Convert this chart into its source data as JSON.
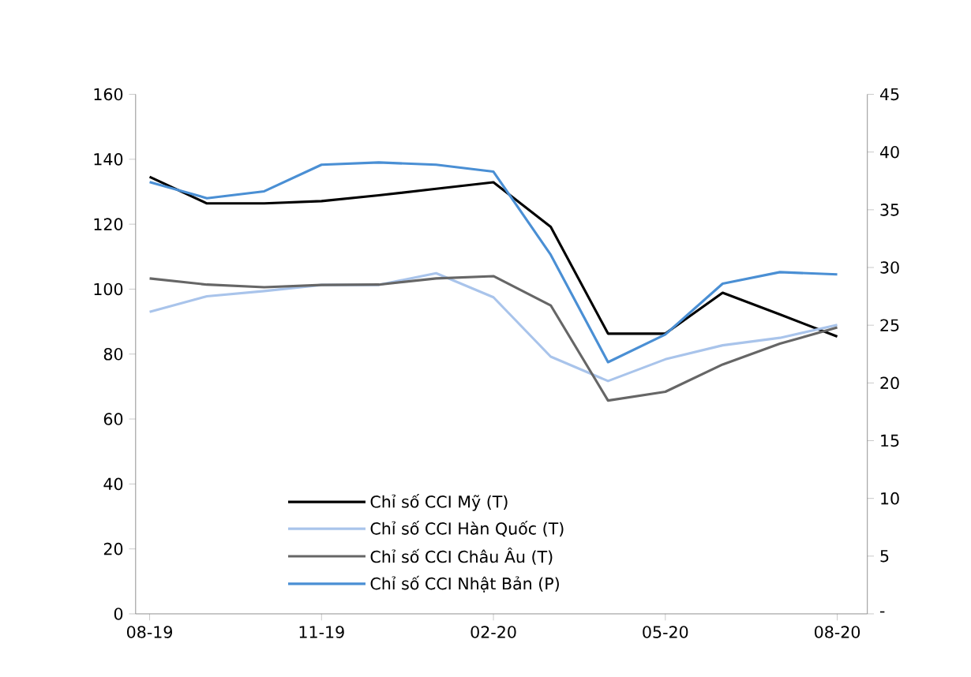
{
  "chart_data": {
    "type": "line",
    "x": [
      "2019-08",
      "2019-09",
      "2019-10",
      "2019-11",
      "2019-12",
      "2020-01",
      "2020-02",
      "2020-03",
      "2020-04",
      "2020-05",
      "2020-06",
      "2020-07",
      "2020-08"
    ],
    "series": [
      {
        "name": "Chỉ số CCI Mỹ (T)",
        "color": "#000000",
        "values": [
          134.6,
          126.4,
          126.4,
          127.1,
          128.9,
          130.9,
          132.9,
          119.2,
          86.3,
          86.3,
          98.9,
          92.2,
          85.4
        ]
      },
      {
        "name": "Chỉ số CCI Hàn Quốc (T)",
        "color": "#a9c4eb",
        "values": [
          93.0,
          97.8,
          99.4,
          101.3,
          101.3,
          104.9,
          97.5,
          79.2,
          71.7,
          78.4,
          82.7,
          85.0,
          89.0
        ]
      },
      {
        "name": "Chỉ số CCI  Châu Âu (T)",
        "color": "#666666",
        "values": [
          103.3,
          101.4,
          100.6,
          101.3,
          101.4,
          103.3,
          104.0,
          95.0,
          65.7,
          68.4,
          76.8,
          83.2,
          88.2
        ]
      },
      {
        "name": "Chỉ số CCI  Nhật Bản (P)",
        "color": "#4a8fd4",
        "axis": "y2",
        "values": [
          37.4,
          36.0,
          36.6,
          38.9,
          39.1,
          38.9,
          38.3,
          31.1,
          21.8,
          24.2,
          28.6,
          29.6,
          29.4
        ]
      }
    ],
    "xlim": [
      "2019-07-24",
      "2020-08-17"
    ],
    "xticks": [
      {
        "value": "2019-08",
        "label": "08-19"
      },
      {
        "value": "2019-11",
        "label": "11-19"
      },
      {
        "value": "2020-02",
        "label": "02-20"
      },
      {
        "value": "2020-05",
        "label": "05-20"
      },
      {
        "value": "2020-08",
        "label": "08-20"
      }
    ],
    "ylim": [
      0,
      160
    ],
    "yticks": [
      0,
      20,
      40,
      60,
      80,
      100,
      120,
      140,
      160
    ],
    "y2lim": [
      0,
      45
    ],
    "y2ticks": [
      {
        "value": 0,
        "label": "-"
      },
      5,
      10,
      15,
      20,
      25,
      30,
      35,
      40,
      45
    ],
    "grid": false,
    "legend": "bottom"
  }
}
